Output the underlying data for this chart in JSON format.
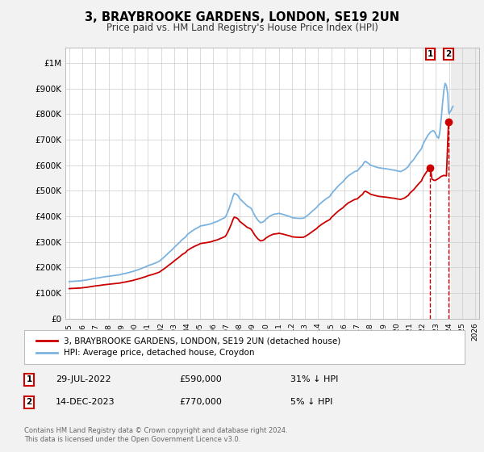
{
  "title": "3, BRAYBROOKE GARDENS, LONDON, SE19 2UN",
  "subtitle": "Price paid vs. HM Land Registry's House Price Index (HPI)",
  "title_fontsize": 10.5,
  "subtitle_fontsize": 8.5,
  "ylabel_ticks": [
    "£0",
    "£100K",
    "£200K",
    "£300K",
    "£400K",
    "£500K",
    "£600K",
    "£700K",
    "£800K",
    "£900K",
    "£1M"
  ],
  "ytick_values": [
    0,
    100000,
    200000,
    300000,
    400000,
    500000,
    600000,
    700000,
    800000,
    900000,
    1000000
  ],
  "ylim": [
    0,
    1060000
  ],
  "xlim_start": 1994.7,
  "xlim_end": 2026.3,
  "xticks": [
    1995,
    1996,
    1997,
    1998,
    1999,
    2000,
    2001,
    2002,
    2003,
    2004,
    2005,
    2006,
    2007,
    2008,
    2009,
    2010,
    2011,
    2012,
    2013,
    2014,
    2015,
    2016,
    2017,
    2018,
    2019,
    2020,
    2021,
    2022,
    2023,
    2024,
    2025,
    2026
  ],
  "hpi_color": "#7bb3e0",
  "price_color": "#cc0000",
  "dashed_color": "#cc0000",
  "sale1_x": 2022.57,
  "sale1_y": 590000,
  "sale2_x": 2023.96,
  "sale2_y": 770000,
  "future_shade_start": 2024.17,
  "legend_line1": "3, BRAYBROOKE GARDENS, LONDON, SE19 2UN (detached house)",
  "legend_line2": "HPI: Average price, detached house, Croydon",
  "table_row1": [
    "1",
    "29-JUL-2022",
    "£590,000",
    "31% ↓ HPI"
  ],
  "table_row2": [
    "2",
    "14-DEC-2023",
    "£770,000",
    "5% ↓ HPI"
  ],
  "copyright_text": "Contains HM Land Registry data © Crown copyright and database right 2024.\nThis data is licensed under the Open Government Licence v3.0.",
  "bg_color": "#f2f2f2",
  "plot_bg_color": "#ffffff",
  "grid_color": "#cccccc",
  "future_shade_color": "#e8e8e8"
}
